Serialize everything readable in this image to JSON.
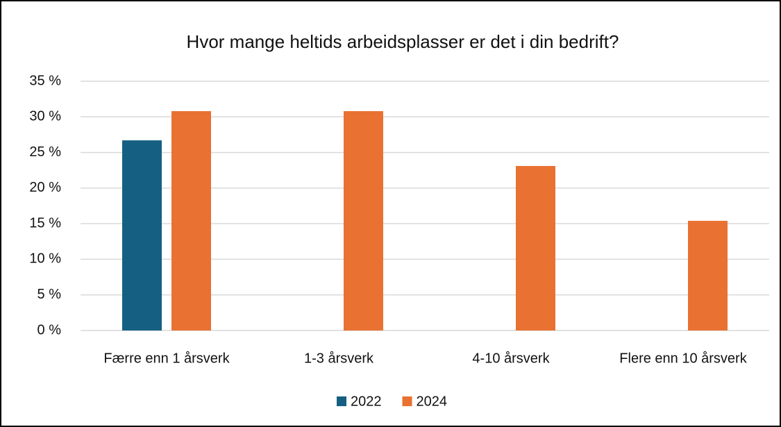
{
  "chart_data": {
    "type": "bar",
    "title": "Hvor mange heltids arbeidsplasser er det i din bedrift?",
    "categories": [
      "Færre enn 1 årsverk",
      "1-3 årsverk",
      "4-10 årsverk",
      "Flere enn 10 årsverk"
    ],
    "series": [
      {
        "name": "2022",
        "color": "#156082",
        "values": [
          26.7,
          null,
          null,
          null
        ]
      },
      {
        "name": "2024",
        "color": "#e97132",
        "values": [
          30.8,
          30.8,
          23.1,
          15.4
        ]
      }
    ],
    "ylim": [
      0,
      35
    ],
    "yticks": [
      {
        "value": 0,
        "label": "0 %"
      },
      {
        "value": 5,
        "label": "5 %"
      },
      {
        "value": 10,
        "label": "10 %"
      },
      {
        "value": 15,
        "label": "15 %"
      },
      {
        "value": 20,
        "label": "20 %"
      },
      {
        "value": 25,
        "label": "25 %"
      },
      {
        "value": 30,
        "label": "30 %"
      },
      {
        "value": 35,
        "label": "35 %"
      }
    ],
    "grid": true,
    "legend": "bottom"
  }
}
